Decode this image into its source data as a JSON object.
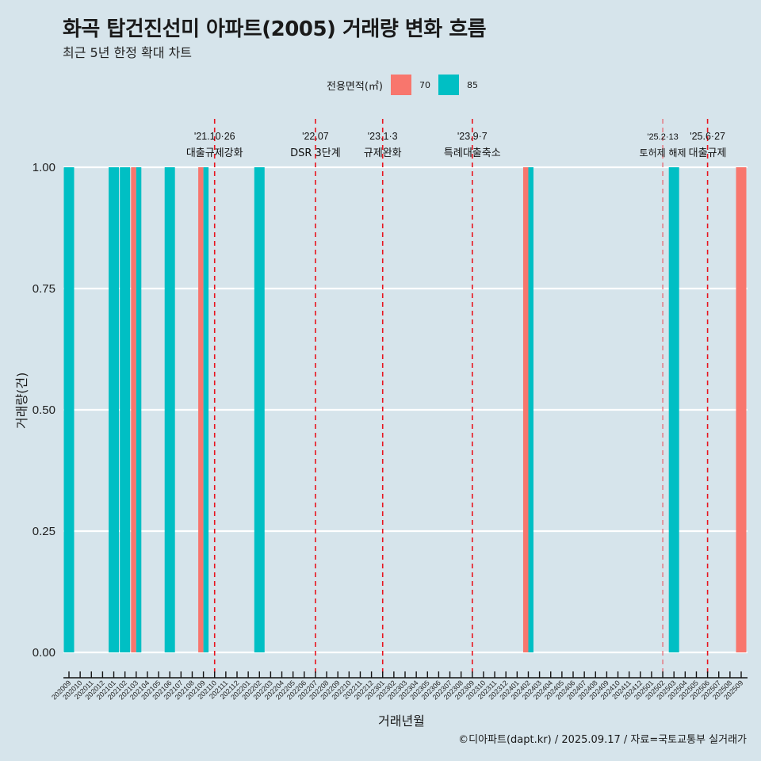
{
  "title": "화곡 탑건진선미 아파트(2005) 거래량 변화 흐름",
  "subtitle": "최근 5년 한정 확대 차트",
  "legend": {
    "title": "전용면적(㎡)",
    "items": [
      {
        "label": "70",
        "color": "#f8766d"
      },
      {
        "label": "85",
        "color": "#00bfc4"
      }
    ]
  },
  "caption": "©디아파트(dapt.kr) / 2025.09.17 / 자료=국토교통부 실거래가",
  "chart_data": {
    "type": "bar",
    "title": "화곡 탑건진선미 아파트(2005) 거래량 변화 흐름",
    "xlabel": "거래년월",
    "ylabel": "거래량(건)",
    "ylim": [
      0,
      1
    ],
    "yticks": [
      "0.00",
      "0.25",
      "0.50",
      "0.75",
      "1.00"
    ],
    "ytick_values": [
      0,
      0.25,
      0.5,
      0.75,
      1
    ],
    "grid": true,
    "legend_position": "top",
    "categories": [
      "202009",
      "202010",
      "202011",
      "202012",
      "202101",
      "202102",
      "202103",
      "202104",
      "202105",
      "202106",
      "202107",
      "202108",
      "202109",
      "202110",
      "202111",
      "202112",
      "202201",
      "202202",
      "202203",
      "202204",
      "202205",
      "202206",
      "202207",
      "202208",
      "202209",
      "202210",
      "202211",
      "202212",
      "202301",
      "202302",
      "202303",
      "202304",
      "202305",
      "202306",
      "202307",
      "202308",
      "202309",
      "202310",
      "202311",
      "202312",
      "202401",
      "202402",
      "202403",
      "202404",
      "202405",
      "202406",
      "202407",
      "202408",
      "202409",
      "202410",
      "202411",
      "202412",
      "202501",
      "202502",
      "202503",
      "202504",
      "202505",
      "202506",
      "202507",
      "202508",
      "202509"
    ],
    "series": [
      {
        "name": "70",
        "color": "#f8766d",
        "points": [
          {
            "x": "202103",
            "y": 1
          },
          {
            "x": "202109",
            "y": 1
          },
          {
            "x": "202402",
            "y": 1
          },
          {
            "x": "202509",
            "y": 1
          }
        ]
      },
      {
        "name": "85",
        "color": "#00bfc4",
        "points": [
          {
            "x": "202009",
            "y": 1
          },
          {
            "x": "202101",
            "y": 1
          },
          {
            "x": "202102",
            "y": 1
          },
          {
            "x": "202103",
            "y": 1
          },
          {
            "x": "202106",
            "y": 1
          },
          {
            "x": "202109",
            "y": 1
          },
          {
            "x": "202202",
            "y": 1
          },
          {
            "x": "202402",
            "y": 1
          },
          {
            "x": "202503",
            "y": 1
          }
        ]
      }
    ],
    "annotations": [
      {
        "x": "202110",
        "date": "'21.10·26",
        "text": "대출규제강화"
      },
      {
        "x": "202207",
        "date": "'22.07",
        "text": "DSR 3단계"
      },
      {
        "x": "202301",
        "date": "'23.1·3",
        "text": "규제완화"
      },
      {
        "x": "202309",
        "date": "'23.9·7",
        "text": "특례대출축소"
      },
      {
        "x": "202502",
        "date": "'25.2·13",
        "text": "토허제 해제"
      },
      {
        "x": "202506",
        "date": "'25.6·27",
        "text": "대출규제"
      }
    ]
  }
}
